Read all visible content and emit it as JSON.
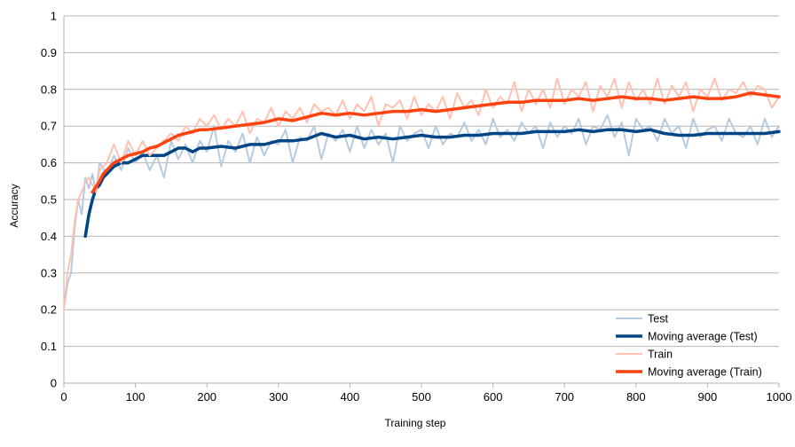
{
  "chart_data": {
    "type": "line",
    "title": "",
    "xlabel": "Training step",
    "ylabel": "Accuracy",
    "xlim": [
      0,
      1000
    ],
    "ylim": [
      0,
      1
    ],
    "x_ticks": [
      "0",
      "100",
      "200",
      "300",
      "400",
      "500",
      "600",
      "700",
      "800",
      "900",
      "1000"
    ],
    "y_ticks": [
      "0",
      "0.1",
      "0.2",
      "0.3",
      "0.4",
      "0.5",
      "0.6",
      "0.7",
      "0.8",
      "0.9",
      "1"
    ],
    "grid": true,
    "legend_position": "bottom-right",
    "series": [
      {
        "name": "Test",
        "color": "#b5cbe0",
        "width": 2,
        "x": [
          0,
          5,
          10,
          15,
          20,
          25,
          30,
          35,
          40,
          45,
          50,
          60,
          70,
          80,
          90,
          100,
          110,
          120,
          130,
          140,
          150,
          160,
          170,
          180,
          190,
          200,
          210,
          220,
          230,
          240,
          250,
          260,
          270,
          280,
          290,
          300,
          310,
          320,
          330,
          340,
          350,
          360,
          370,
          380,
          390,
          400,
          410,
          420,
          430,
          440,
          450,
          460,
          470,
          480,
          490,
          500,
          510,
          520,
          530,
          540,
          550,
          560,
          570,
          580,
          590,
          600,
          610,
          620,
          630,
          640,
          650,
          660,
          670,
          680,
          690,
          700,
          710,
          720,
          730,
          740,
          750,
          760,
          770,
          780,
          790,
          800,
          810,
          820,
          830,
          840,
          850,
          860,
          870,
          880,
          890,
          900,
          910,
          920,
          930,
          940,
          950,
          960,
          970,
          980,
          990,
          1000
        ],
        "values": [
          0.2,
          0.27,
          0.3,
          0.42,
          0.5,
          0.46,
          0.56,
          0.53,
          0.57,
          0.52,
          0.6,
          0.57,
          0.62,
          0.58,
          0.64,
          0.6,
          0.63,
          0.58,
          0.62,
          0.56,
          0.66,
          0.61,
          0.65,
          0.6,
          0.66,
          0.63,
          0.7,
          0.59,
          0.66,
          0.63,
          0.68,
          0.6,
          0.67,
          0.62,
          0.66,
          0.65,
          0.69,
          0.6,
          0.67,
          0.66,
          0.7,
          0.61,
          0.68,
          0.66,
          0.69,
          0.63,
          0.7,
          0.64,
          0.69,
          0.65,
          0.68,
          0.6,
          0.7,
          0.66,
          0.68,
          0.69,
          0.64,
          0.7,
          0.65,
          0.68,
          0.67,
          0.71,
          0.66,
          0.69,
          0.65,
          0.72,
          0.67,
          0.69,
          0.66,
          0.71,
          0.68,
          0.7,
          0.64,
          0.71,
          0.67,
          0.7,
          0.68,
          0.72,
          0.65,
          0.7,
          0.69,
          0.73,
          0.67,
          0.71,
          0.62,
          0.72,
          0.69,
          0.7,
          0.66,
          0.72,
          0.68,
          0.7,
          0.64,
          0.72,
          0.67,
          0.69,
          0.7,
          0.66,
          0.72,
          0.68,
          0.67,
          0.7,
          0.65,
          0.72,
          0.67,
          0.7
        ]
      },
      {
        "name": "Moving average (Test)",
        "color": "#004586",
        "width": 3.5,
        "x": [
          30,
          35,
          40,
          45,
          50,
          55,
          60,
          70,
          80,
          90,
          100,
          110,
          120,
          130,
          140,
          150,
          160,
          170,
          180,
          190,
          200,
          220,
          240,
          260,
          280,
          300,
          320,
          340,
          360,
          380,
          400,
          420,
          440,
          460,
          480,
          500,
          520,
          540,
          560,
          580,
          600,
          620,
          640,
          660,
          680,
          700,
          720,
          740,
          760,
          780,
          800,
          820,
          840,
          860,
          880,
          900,
          920,
          940,
          960,
          980,
          1000
        ],
        "values": [
          0.4,
          0.46,
          0.5,
          0.53,
          0.54,
          0.56,
          0.57,
          0.59,
          0.6,
          0.6,
          0.61,
          0.62,
          0.62,
          0.62,
          0.62,
          0.63,
          0.64,
          0.64,
          0.63,
          0.64,
          0.64,
          0.645,
          0.64,
          0.65,
          0.65,
          0.66,
          0.66,
          0.665,
          0.68,
          0.67,
          0.675,
          0.665,
          0.67,
          0.665,
          0.67,
          0.675,
          0.67,
          0.67,
          0.675,
          0.675,
          0.68,
          0.68,
          0.68,
          0.685,
          0.685,
          0.685,
          0.69,
          0.685,
          0.69,
          0.69,
          0.685,
          0.69,
          0.68,
          0.675,
          0.675,
          0.68,
          0.68,
          0.68,
          0.68,
          0.68,
          0.685
        ]
      },
      {
        "name": "Train",
        "color": "#ffc1b0",
        "width": 2,
        "x": [
          0,
          5,
          10,
          15,
          20,
          25,
          30,
          35,
          40,
          45,
          50,
          60,
          70,
          80,
          90,
          100,
          110,
          120,
          130,
          140,
          150,
          160,
          170,
          180,
          190,
          200,
          210,
          220,
          230,
          240,
          250,
          260,
          270,
          280,
          290,
          300,
          310,
          320,
          330,
          340,
          350,
          360,
          370,
          380,
          390,
          400,
          410,
          420,
          430,
          440,
          450,
          460,
          470,
          480,
          490,
          500,
          510,
          520,
          530,
          540,
          550,
          560,
          570,
          580,
          590,
          600,
          610,
          620,
          630,
          640,
          650,
          660,
          670,
          680,
          690,
          700,
          710,
          720,
          730,
          740,
          750,
          760,
          770,
          780,
          790,
          800,
          810,
          820,
          830,
          840,
          850,
          860,
          870,
          880,
          890,
          900,
          910,
          920,
          930,
          940,
          950,
          960,
          970,
          980,
          990,
          1000
        ],
        "values": [
          0.2,
          0.3,
          0.35,
          0.44,
          0.5,
          0.52,
          0.55,
          0.56,
          0.54,
          0.52,
          0.58,
          0.6,
          0.65,
          0.6,
          0.66,
          0.62,
          0.66,
          0.62,
          0.64,
          0.66,
          0.68,
          0.66,
          0.7,
          0.68,
          0.72,
          0.7,
          0.73,
          0.69,
          0.72,
          0.7,
          0.74,
          0.68,
          0.72,
          0.71,
          0.75,
          0.7,
          0.74,
          0.72,
          0.75,
          0.71,
          0.76,
          0.74,
          0.75,
          0.73,
          0.77,
          0.72,
          0.76,
          0.74,
          0.78,
          0.7,
          0.76,
          0.75,
          0.77,
          0.72,
          0.78,
          0.73,
          0.76,
          0.74,
          0.78,
          0.72,
          0.79,
          0.75,
          0.77,
          0.73,
          0.8,
          0.75,
          0.78,
          0.76,
          0.82,
          0.74,
          0.8,
          0.76,
          0.8,
          0.75,
          0.83,
          0.76,
          0.8,
          0.78,
          0.82,
          0.74,
          0.81,
          0.78,
          0.83,
          0.75,
          0.82,
          0.77,
          0.8,
          0.76,
          0.83,
          0.76,
          0.81,
          0.78,
          0.82,
          0.74,
          0.8,
          0.78,
          0.83,
          0.77,
          0.8,
          0.79,
          0.82,
          0.78,
          0.81,
          0.8,
          0.75,
          0.78
        ]
      },
      {
        "name": "Moving average (Train)",
        "color": "#ff420e",
        "width": 3.5,
        "x": [
          40,
          45,
          50,
          55,
          60,
          65,
          70,
          80,
          90,
          100,
          110,
          120,
          130,
          140,
          150,
          160,
          170,
          180,
          190,
          200,
          220,
          240,
          260,
          280,
          300,
          320,
          340,
          360,
          380,
          400,
          420,
          440,
          460,
          480,
          500,
          520,
          540,
          560,
          580,
          600,
          620,
          640,
          660,
          680,
          700,
          720,
          740,
          760,
          780,
          800,
          820,
          840,
          860,
          880,
          900,
          920,
          940,
          960,
          980,
          1000
        ],
        "values": [
          0.52,
          0.535,
          0.55,
          0.57,
          0.58,
          0.59,
          0.6,
          0.61,
          0.62,
          0.625,
          0.63,
          0.64,
          0.645,
          0.655,
          0.665,
          0.675,
          0.68,
          0.685,
          0.69,
          0.69,
          0.695,
          0.7,
          0.705,
          0.71,
          0.72,
          0.715,
          0.725,
          0.735,
          0.73,
          0.735,
          0.73,
          0.735,
          0.74,
          0.74,
          0.745,
          0.74,
          0.745,
          0.75,
          0.755,
          0.76,
          0.765,
          0.765,
          0.77,
          0.77,
          0.77,
          0.775,
          0.77,
          0.775,
          0.78,
          0.775,
          0.775,
          0.77,
          0.775,
          0.78,
          0.775,
          0.775,
          0.78,
          0.79,
          0.785,
          0.78
        ]
      }
    ]
  }
}
